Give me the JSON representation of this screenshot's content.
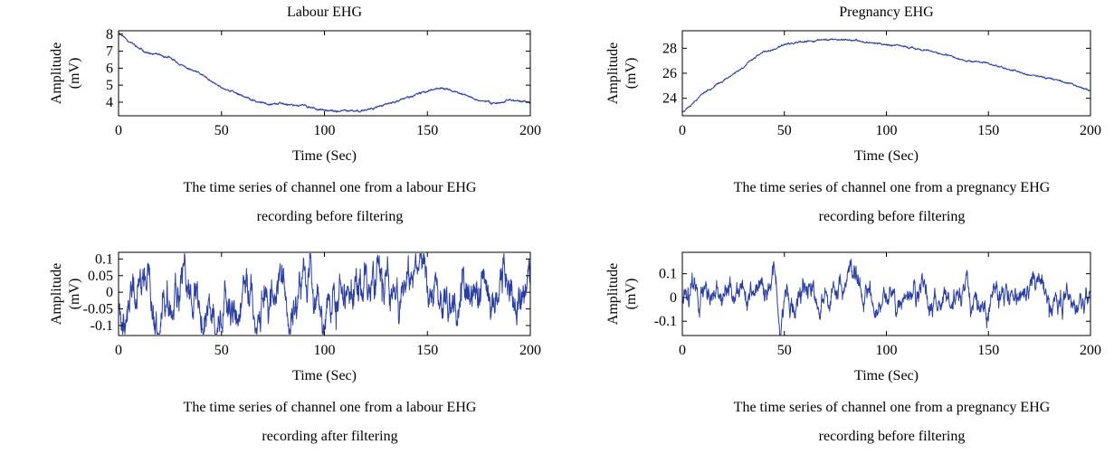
{
  "line_color": "#2b3fa0",
  "chart_data": [
    {
      "id": "labour-before",
      "type": "line",
      "title": "Labour EHG",
      "xlabel": "Time (Sec)",
      "ylabel": [
        "Amplitude",
        "(mV)"
      ],
      "xlim": [
        0,
        200
      ],
      "ylim": [
        3.2,
        8.2
      ],
      "xticks": [
        0,
        50,
        100,
        150,
        200
      ],
      "yticks": [
        4,
        5,
        6,
        7,
        8
      ],
      "ytick_labels": [
        "4",
        "5",
        "6",
        "7",
        "8"
      ],
      "caption": [
        "The time series of channel one from a labour EHG",
        "recording before filtering"
      ],
      "trend": [
        [
          0,
          8.1
        ],
        [
          5,
          7.6
        ],
        [
          10,
          7.15
        ],
        [
          15,
          6.85
        ],
        [
          20,
          6.75
        ],
        [
          25,
          6.6
        ],
        [
          30,
          6.2
        ],
        [
          35,
          5.9
        ],
        [
          40,
          5.65
        ],
        [
          45,
          5.2
        ],
        [
          50,
          4.85
        ],
        [
          55,
          4.65
        ],
        [
          60,
          4.4
        ],
        [
          65,
          4.1
        ],
        [
          70,
          3.95
        ],
        [
          80,
          3.9
        ],
        [
          90,
          3.8
        ],
        [
          95,
          3.65
        ],
        [
          100,
          3.5
        ],
        [
          105,
          3.45
        ],
        [
          110,
          3.5
        ],
        [
          115,
          3.45
        ],
        [
          120,
          3.55
        ],
        [
          125,
          3.7
        ],
        [
          130,
          3.85
        ],
        [
          140,
          4.25
        ],
        [
          150,
          4.65
        ],
        [
          155,
          4.85
        ],
        [
          160,
          4.75
        ],
        [
          170,
          4.35
        ],
        [
          175,
          4.1
        ],
        [
          180,
          4.0
        ],
        [
          185,
          3.95
        ],
        [
          190,
          4.15
        ],
        [
          195,
          4.05
        ],
        [
          200,
          3.95
        ]
      ],
      "noise": 0.06,
      "samples": 1500,
      "seed": 11
    },
    {
      "id": "pregnancy-before",
      "type": "line",
      "title": "Pregnancy EHG",
      "xlabel": "Time (Sec)",
      "ylabel": [
        "Amplitude",
        "(mV)"
      ],
      "xlim": [
        0,
        200
      ],
      "ylim": [
        22.6,
        29.4
      ],
      "xticks": [
        0,
        50,
        100,
        150,
        200
      ],
      "yticks": [
        24,
        26,
        28
      ],
      "ytick_labels": [
        "24",
        "26",
        "28"
      ],
      "caption": [
        "The time series of channel one from a pregnancy EHG",
        "recording before filtering"
      ],
      "trend": [
        [
          0,
          22.9
        ],
        [
          5,
          23.6
        ],
        [
          10,
          24.4
        ],
        [
          20,
          25.4
        ],
        [
          30,
          26.5
        ],
        [
          35,
          27.2
        ],
        [
          40,
          27.7
        ],
        [
          45,
          27.9
        ],
        [
          50,
          28.3
        ],
        [
          60,
          28.5
        ],
        [
          70,
          28.7
        ],
        [
          80,
          28.7
        ],
        [
          90,
          28.5
        ],
        [
          100,
          28.3
        ],
        [
          110,
          28.1
        ],
        [
          120,
          27.8
        ],
        [
          130,
          27.4
        ],
        [
          140,
          27.0
        ],
        [
          150,
          26.8
        ],
        [
          160,
          26.3
        ],
        [
          170,
          25.9
        ],
        [
          180,
          25.6
        ],
        [
          190,
          25.2
        ],
        [
          200,
          24.6
        ]
      ],
      "noise": 0.07,
      "samples": 1500,
      "seed": 23
    },
    {
      "id": "labour-after",
      "type": "line",
      "xlabel": "Time (Sec)",
      "ylabel": [
        "Amplitude",
        "(mV)"
      ],
      "xlim": [
        0,
        200
      ],
      "ylim": [
        -0.13,
        0.12
      ],
      "xticks": [
        0,
        50,
        100,
        150,
        200
      ],
      "yticks": [
        -0.1,
        -0.05,
        0,
        0.05,
        0.1
      ],
      "ytick_labels": [
        "-0.1",
        "-0.05",
        "0",
        "0.05",
        "0.1"
      ],
      "caption": [
        "The time series of channel one from a labour EHG",
        "recording after filtering"
      ],
      "oscillation": 0.045,
      "samples": 1500,
      "seed": 37
    },
    {
      "id": "pregnancy-after",
      "type": "line",
      "xlabel": "Time (Sec)",
      "ylabel": [
        "Amplitude",
        "(mV)"
      ],
      "xlim": [
        0,
        200
      ],
      "ylim": [
        -0.16,
        0.19
      ],
      "xticks": [
        0,
        50,
        100,
        150,
        200
      ],
      "yticks": [
        -0.1,
        0,
        0.1
      ],
      "ytick_labels": [
        "-0.1",
        "0",
        "0.1"
      ],
      "caption": [
        "The time series of channel one from a pregnancy EHG",
        "recording before filtering"
      ],
      "oscillation": 0.035,
      "bursts": [
        [
          45,
          0.13
        ],
        [
          48,
          -0.15
        ],
        [
          82,
          0.1
        ],
        [
          88,
          -0.09
        ]
      ],
      "samples": 1500,
      "seed": 51
    }
  ]
}
